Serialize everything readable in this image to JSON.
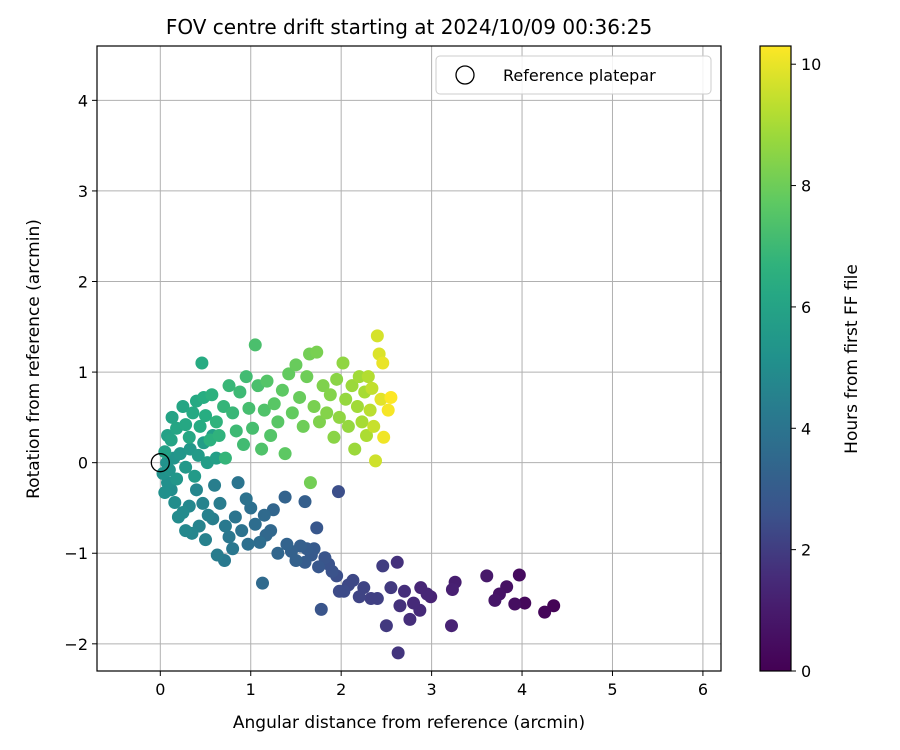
{
  "chart_data": {
    "type": "scatter",
    "title": "FOV centre drift starting at 2024/10/09 00:36:25",
    "xlabel": "Angular distance from reference (arcmin)",
    "ylabel": "Rotation from reference (arcmin)",
    "xlim": [
      -0.7,
      6.2
    ],
    "ylim": [
      -2.3,
      4.6
    ],
    "xticks": [
      0,
      1,
      2,
      3,
      4,
      5,
      6
    ],
    "yticks": [
      -2,
      -1,
      0,
      1,
      2,
      3,
      4
    ],
    "grid": true,
    "legend": {
      "position": "top-right",
      "entries": [
        "Reference platepar"
      ]
    },
    "reference_point": {
      "x": 0,
      "y": 0
    },
    "colorbar": {
      "label": "Hours from first FF file",
      "range": [
        0,
        10.3
      ],
      "ticks": [
        0,
        2,
        4,
        6,
        8,
        10
      ],
      "colormap": "viridis"
    },
    "series": [
      {
        "points": [
          {
            "x": 4.35,
            "y": -1.58,
            "c": 0.1
          },
          {
            "x": 4.25,
            "y": -1.65,
            "c": 0.2
          },
          {
            "x": 4.03,
            "y": -1.55,
            "c": 0.3
          },
          {
            "x": 3.97,
            "y": -1.24,
            "c": 0.4
          },
          {
            "x": 3.92,
            "y": -1.56,
            "c": 0.5
          },
          {
            "x": 3.83,
            "y": -1.37,
            "c": 0.6
          },
          {
            "x": 3.75,
            "y": -1.45,
            "c": 0.7
          },
          {
            "x": 3.7,
            "y": -1.52,
            "c": 0.8
          },
          {
            "x": 3.61,
            "y": -1.25,
            "c": 0.9
          },
          {
            "x": 3.26,
            "y": -1.32,
            "c": 1.1
          },
          {
            "x": 3.23,
            "y": -1.4,
            "c": 1.2
          },
          {
            "x": 3.22,
            "y": -1.8,
            "c": 1.3
          },
          {
            "x": 2.99,
            "y": -1.48,
            "c": 1.3
          },
          {
            "x": 2.95,
            "y": -1.45,
            "c": 1.4
          },
          {
            "x": 2.88,
            "y": -1.38,
            "c": 1.4
          },
          {
            "x": 2.87,
            "y": -1.63,
            "c": 1.5
          },
          {
            "x": 2.8,
            "y": -1.55,
            "c": 1.5
          },
          {
            "x": 2.76,
            "y": -1.73,
            "c": 1.6
          },
          {
            "x": 2.7,
            "y": -1.42,
            "c": 1.6
          },
          {
            "x": 2.65,
            "y": -1.58,
            "c": 1.7
          },
          {
            "x": 2.62,
            "y": -1.1,
            "c": 1.7
          },
          {
            "x": 2.63,
            "y": -2.1,
            "c": 1.8
          },
          {
            "x": 2.55,
            "y": -1.38,
            "c": 1.9
          },
          {
            "x": 2.5,
            "y": -1.8,
            "c": 1.9
          },
          {
            "x": 2.46,
            "y": -1.14,
            "c": 2.0
          },
          {
            "x": 2.4,
            "y": -1.5,
            "c": 2.1
          },
          {
            "x": 2.33,
            "y": -1.5,
            "c": 2.1
          },
          {
            "x": 2.25,
            "y": -1.38,
            "c": 2.2
          },
          {
            "x": 2.2,
            "y": -1.48,
            "c": 2.2
          },
          {
            "x": 2.13,
            "y": -1.3,
            "c": 2.3
          },
          {
            "x": 2.08,
            "y": -1.35,
            "c": 2.3
          },
          {
            "x": 2.03,
            "y": -1.42,
            "c": 2.4
          },
          {
            "x": 1.98,
            "y": -1.42,
            "c": 2.4
          },
          {
            "x": 1.97,
            "y": -0.32,
            "c": 2.5
          },
          {
            "x": 1.95,
            "y": -1.25,
            "c": 2.5
          },
          {
            "x": 1.9,
            "y": -1.2,
            "c": 2.6
          },
          {
            "x": 1.86,
            "y": -1.12,
            "c": 2.6
          },
          {
            "x": 1.82,
            "y": -1.05,
            "c": 2.7
          },
          {
            "x": 1.78,
            "y": -1.62,
            "c": 2.7
          },
          {
            "x": 1.75,
            "y": -1.15,
            "c": 2.8
          },
          {
            "x": 1.73,
            "y": -0.72,
            "c": 2.8
          },
          {
            "x": 1.7,
            "y": -0.95,
            "c": 2.9
          },
          {
            "x": 1.67,
            "y": -1.02,
            "c": 2.9
          },
          {
            "x": 1.62,
            "y": -0.95,
            "c": 3.0
          },
          {
            "x": 1.6,
            "y": -1.1,
            "c": 3.0
          },
          {
            "x": 1.6,
            "y": -0.43,
            "c": 3.1
          },
          {
            "x": 1.55,
            "y": -0.92,
            "c": 3.1
          },
          {
            "x": 1.5,
            "y": -1.08,
            "c": 3.2
          },
          {
            "x": 1.45,
            "y": -0.98,
            "c": 3.2
          },
          {
            "x": 1.4,
            "y": -0.9,
            "c": 3.3
          },
          {
            "x": 1.38,
            "y": -0.38,
            "c": 3.3
          },
          {
            "x": 1.3,
            "y": -1.0,
            "c": 3.4
          },
          {
            "x": 1.25,
            "y": -0.52,
            "c": 3.4
          },
          {
            "x": 1.22,
            "y": -0.75,
            "c": 3.5
          },
          {
            "x": 1.17,
            "y": -0.8,
            "c": 3.5
          },
          {
            "x": 1.15,
            "y": -0.58,
            "c": 3.6
          },
          {
            "x": 1.13,
            "y": -1.33,
            "c": 3.6
          },
          {
            "x": 1.1,
            "y": -0.88,
            "c": 3.7
          },
          {
            "x": 1.05,
            "y": -0.68,
            "c": 3.7
          },
          {
            "x": 1.0,
            "y": -0.5,
            "c": 3.8
          },
          {
            "x": 0.97,
            "y": -0.9,
            "c": 3.8
          },
          {
            "x": 0.95,
            "y": -0.4,
            "c": 3.9
          },
          {
            "x": 0.9,
            "y": -0.75,
            "c": 3.9
          },
          {
            "x": 0.86,
            "y": -0.22,
            "c": 4.0
          },
          {
            "x": 0.83,
            "y": -0.6,
            "c": 4.0
          },
          {
            "x": 0.8,
            "y": -0.95,
            "c": 4.1
          },
          {
            "x": 0.76,
            "y": -0.82,
            "c": 4.1
          },
          {
            "x": 0.72,
            "y": -0.7,
            "c": 4.2
          },
          {
            "x": 0.71,
            "y": -1.08,
            "c": 4.2
          },
          {
            "x": 0.66,
            "y": -0.45,
            "c": 4.3
          },
          {
            "x": 0.63,
            "y": -1.02,
            "c": 4.3
          },
          {
            "x": 0.6,
            "y": -0.25,
            "c": 4.4
          },
          {
            "x": 0.58,
            "y": -0.62,
            "c": 4.4
          },
          {
            "x": 0.53,
            "y": -0.58,
            "c": 4.5
          },
          {
            "x": 0.5,
            "y": -0.85,
            "c": 4.5
          },
          {
            "x": 0.47,
            "y": -0.45,
            "c": 4.6
          },
          {
            "x": 0.43,
            "y": -0.7,
            "c": 4.6
          },
          {
            "x": 0.4,
            "y": -0.3,
            "c": 4.7
          },
          {
            "x": 0.35,
            "y": -0.78,
            "c": 4.7
          },
          {
            "x": 0.32,
            "y": -0.48,
            "c": 4.8
          },
          {
            "x": 0.28,
            "y": -0.75,
            "c": 4.8
          },
          {
            "x": 0.25,
            "y": -0.55,
            "c": 4.9
          },
          {
            "x": 0.2,
            "y": -0.6,
            "c": 4.9
          },
          {
            "x": 0.16,
            "y": -0.44,
            "c": 5.0
          },
          {
            "x": 0.12,
            "y": -0.3,
            "c": 5.0
          },
          {
            "x": 0.08,
            "y": -0.22,
            "c": 5.1
          },
          {
            "x": 0.05,
            "y": -0.33,
            "c": 5.1
          },
          {
            "x": 0.03,
            "y": -0.12,
            "c": 5.2
          },
          {
            "x": 0.07,
            "y": 0.0,
            "c": 5.2
          },
          {
            "x": 0.1,
            "y": -0.08,
            "c": 5.3
          },
          {
            "x": 0.15,
            "y": 0.05,
            "c": 5.3
          },
          {
            "x": 0.18,
            "y": -0.18,
            "c": 5.4
          },
          {
            "x": 0.22,
            "y": 0.1,
            "c": 5.4
          },
          {
            "x": 0.28,
            "y": -0.05,
            "c": 5.5
          },
          {
            "x": 0.33,
            "y": 0.15,
            "c": 5.5
          },
          {
            "x": 0.38,
            "y": -0.15,
            "c": 5.6
          },
          {
            "x": 0.42,
            "y": 0.08,
            "c": 5.6
          },
          {
            "x": 0.48,
            "y": 0.22,
            "c": 5.7
          },
          {
            "x": 0.52,
            "y": 0.0,
            "c": 5.7
          },
          {
            "x": 0.58,
            "y": 0.3,
            "c": 5.8
          },
          {
            "x": 0.62,
            "y": 0.05,
            "c": 5.8
          },
          {
            "x": 0.05,
            "y": 0.12,
            "c": 5.9
          },
          {
            "x": 0.08,
            "y": 0.3,
            "c": 5.9
          },
          {
            "x": 0.12,
            "y": 0.25,
            "c": 6.0
          },
          {
            "x": 0.13,
            "y": 0.5,
            "c": 6.0
          },
          {
            "x": 0.18,
            "y": 0.38,
            "c": 6.1
          },
          {
            "x": 0.25,
            "y": 0.62,
            "c": 6.1
          },
          {
            "x": 0.28,
            "y": 0.42,
            "c": 6.2
          },
          {
            "x": 0.32,
            "y": 0.28,
            "c": 6.2
          },
          {
            "x": 0.36,
            "y": 0.55,
            "c": 6.3
          },
          {
            "x": 0.4,
            "y": 0.68,
            "c": 6.3
          },
          {
            "x": 0.44,
            "y": 0.4,
            "c": 6.4
          },
          {
            "x": 0.46,
            "y": 1.1,
            "c": 6.4
          },
          {
            "x": 0.48,
            "y": 0.72,
            "c": 6.5
          },
          {
            "x": 0.5,
            "y": 0.52,
            "c": 6.5
          },
          {
            "x": 0.55,
            "y": 0.25,
            "c": 6.6
          },
          {
            "x": 0.57,
            "y": 0.75,
            "c": 6.6
          },
          {
            "x": 0.62,
            "y": 0.45,
            "c": 6.7
          },
          {
            "x": 0.65,
            "y": 0.3,
            "c": 6.7
          },
          {
            "x": 0.7,
            "y": 0.62,
            "c": 6.8
          },
          {
            "x": 0.72,
            "y": 0.05,
            "c": 6.8
          },
          {
            "x": 0.76,
            "y": 0.85,
            "c": 6.9
          },
          {
            "x": 0.8,
            "y": 0.55,
            "c": 6.9
          },
          {
            "x": 0.84,
            "y": 0.35,
            "c": 7.0
          },
          {
            "x": 0.88,
            "y": 0.78,
            "c": 7.0
          },
          {
            "x": 0.92,
            "y": 0.2,
            "c": 7.1
          },
          {
            "x": 0.95,
            "y": 0.95,
            "c": 7.1
          },
          {
            "x": 0.98,
            "y": 0.6,
            "c": 7.2
          },
          {
            "x": 1.02,
            "y": 0.38,
            "c": 7.2
          },
          {
            "x": 1.05,
            "y": 1.3,
            "c": 7.3
          },
          {
            "x": 1.08,
            "y": 0.85,
            "c": 7.3
          },
          {
            "x": 1.12,
            "y": 0.15,
            "c": 7.4
          },
          {
            "x": 1.15,
            "y": 0.58,
            "c": 7.4
          },
          {
            "x": 1.18,
            "y": 0.9,
            "c": 7.5
          },
          {
            "x": 1.22,
            "y": 0.3,
            "c": 7.5
          },
          {
            "x": 1.26,
            "y": 0.65,
            "c": 7.6
          },
          {
            "x": 1.3,
            "y": 0.45,
            "c": 7.6
          },
          {
            "x": 1.35,
            "y": 0.8,
            "c": 7.7
          },
          {
            "x": 1.38,
            "y": 0.1,
            "c": 7.7
          },
          {
            "x": 1.42,
            "y": 0.98,
            "c": 7.8
          },
          {
            "x": 1.46,
            "y": 0.55,
            "c": 7.8
          },
          {
            "x": 1.5,
            "y": 1.08,
            "c": 7.9
          },
          {
            "x": 1.54,
            "y": 0.72,
            "c": 7.9
          },
          {
            "x": 1.58,
            "y": 0.4,
            "c": 8.0
          },
          {
            "x": 1.62,
            "y": 0.95,
            "c": 8.0
          },
          {
            "x": 1.65,
            "y": 1.2,
            "c": 8.1
          },
          {
            "x": 1.66,
            "y": -0.22,
            "c": 8.1
          },
          {
            "x": 1.7,
            "y": 0.62,
            "c": 8.2
          },
          {
            "x": 1.73,
            "y": 1.22,
            "c": 8.2
          },
          {
            "x": 1.76,
            "y": 0.45,
            "c": 8.3
          },
          {
            "x": 1.8,
            "y": 0.85,
            "c": 8.3
          },
          {
            "x": 1.84,
            "y": 0.55,
            "c": 8.4
          },
          {
            "x": 1.88,
            "y": 0.75,
            "c": 8.4
          },
          {
            "x": 1.92,
            "y": 0.28,
            "c": 8.5
          },
          {
            "x": 1.95,
            "y": 0.92,
            "c": 8.5
          },
          {
            "x": 1.98,
            "y": 0.5,
            "c": 8.6
          },
          {
            "x": 2.02,
            "y": 1.1,
            "c": 8.6
          },
          {
            "x": 2.05,
            "y": 0.7,
            "c": 8.7
          },
          {
            "x": 2.08,
            "y": 0.4,
            "c": 8.7
          },
          {
            "x": 2.12,
            "y": 0.85,
            "c": 8.8
          },
          {
            "x": 2.15,
            "y": 0.15,
            "c": 8.8
          },
          {
            "x": 2.18,
            "y": 0.62,
            "c": 8.9
          },
          {
            "x": 2.2,
            "y": 0.95,
            "c": 8.9
          },
          {
            "x": 2.23,
            "y": 0.45,
            "c": 9.0
          },
          {
            "x": 2.26,
            "y": 0.78,
            "c": 9.0
          },
          {
            "x": 2.28,
            "y": 0.3,
            "c": 9.1
          },
          {
            "x": 2.3,
            "y": 0.95,
            "c": 9.2
          },
          {
            "x": 2.32,
            "y": 0.58,
            "c": 9.3
          },
          {
            "x": 2.34,
            "y": 0.82,
            "c": 9.4
          },
          {
            "x": 2.36,
            "y": 0.4,
            "c": 9.5
          },
          {
            "x": 2.38,
            "y": 0.02,
            "c": 9.6
          },
          {
            "x": 2.4,
            "y": 1.4,
            "c": 9.7
          },
          {
            "x": 2.42,
            "y": 1.2,
            "c": 9.8
          },
          {
            "x": 2.44,
            "y": 0.7,
            "c": 9.9
          },
          {
            "x": 2.46,
            "y": 1.1,
            "c": 10.0
          },
          {
            "x": 2.47,
            "y": 0.28,
            "c": 10.1
          },
          {
            "x": 2.52,
            "y": 0.58,
            "c": 10.2
          },
          {
            "x": 2.55,
            "y": 0.72,
            "c": 10.3
          }
        ]
      }
    ]
  }
}
